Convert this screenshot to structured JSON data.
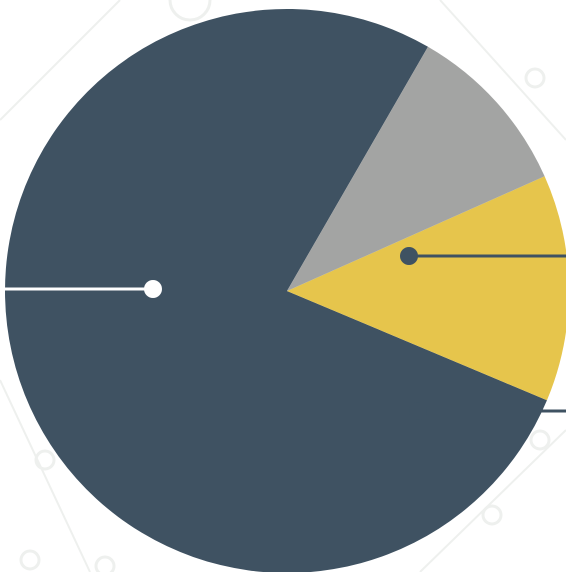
{
  "chart_data": {
    "type": "pie",
    "slices": [
      {
        "value": 77,
        "color": "#3f5262"
      },
      {
        "value": 13,
        "color": "#e6c54c"
      },
      {
        "value": 10,
        "color": "#a3a4a3"
      }
    ],
    "start_angle_deg": 60
  },
  "colors": {
    "background": "#ffffff",
    "pattern": "#eef0ee",
    "callout_on_dark": "#ffffff",
    "callout_on_light": "#3f5262"
  }
}
